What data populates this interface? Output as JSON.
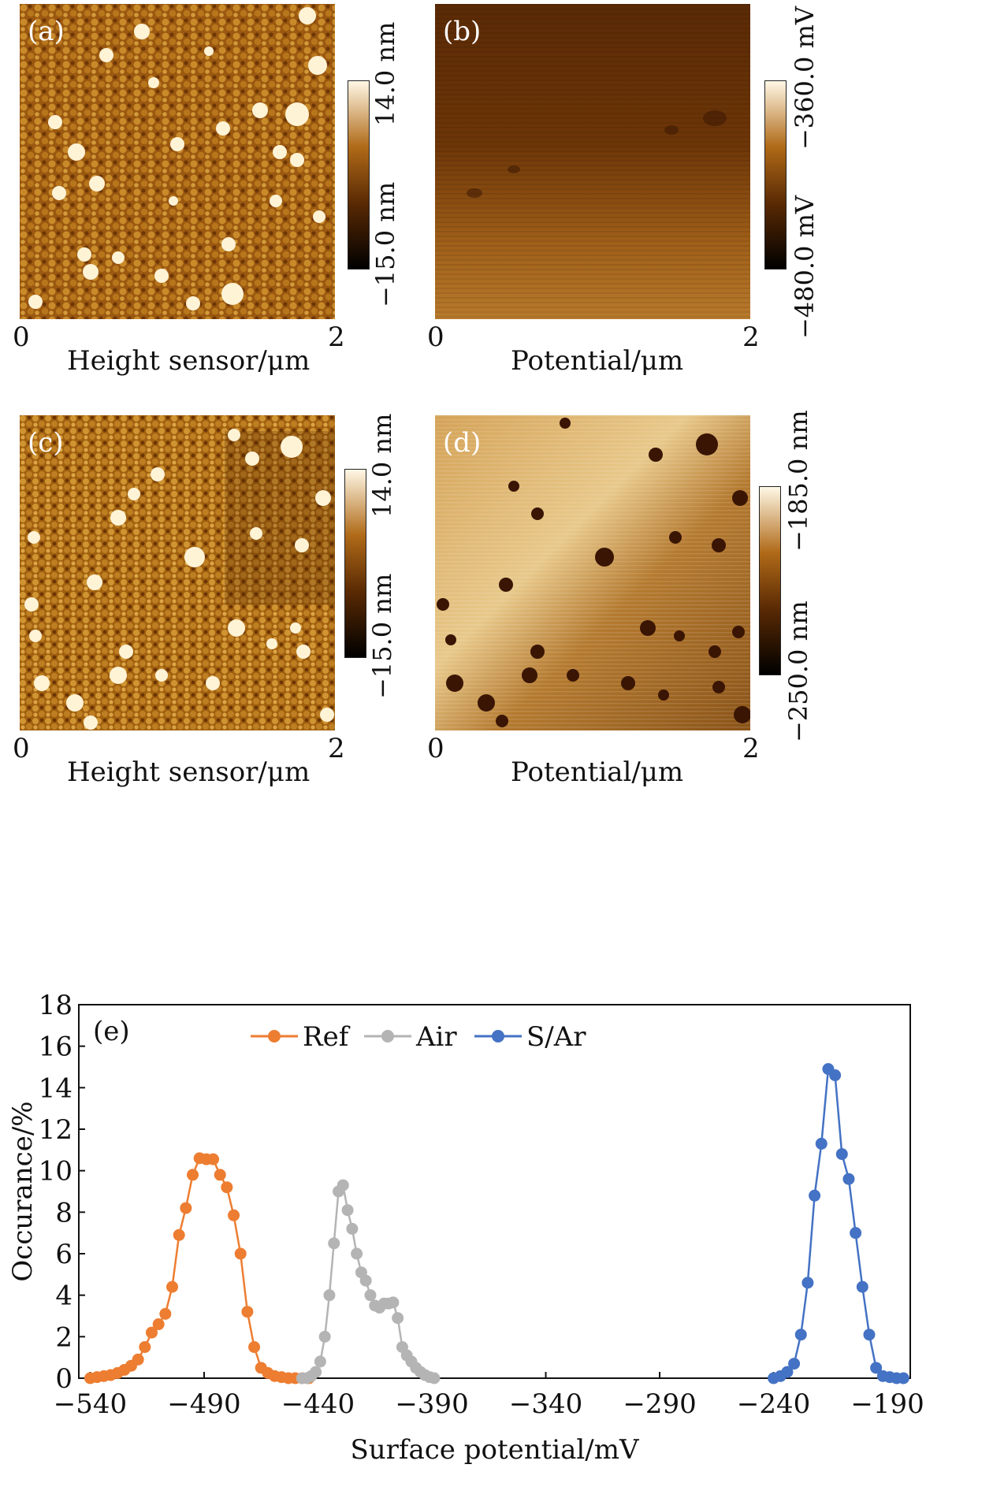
{
  "panels": {
    "a": {
      "label": "(a)",
      "x_min": "0",
      "x_max": "2",
      "xlabel": "Height sensor/μm",
      "cbar_max": "14.0 nm",
      "cbar_min": "−15.0 nm"
    },
    "b": {
      "label": "(b)",
      "x_min": "0",
      "x_max": "2",
      "xlabel": "Potential/μm",
      "cbar_max": "−360.0 mV",
      "cbar_min": "−480.0 mV"
    },
    "c": {
      "label": "(c)",
      "x_min": "0",
      "x_max": "2",
      "xlabel": "Height sensor/μm",
      "cbar_max": "14.0 nm",
      "cbar_min": "−15.0 nm"
    },
    "d": {
      "label": "(d)",
      "x_min": "0",
      "x_max": "2",
      "xlabel": "Potential/μm",
      "cbar_max": "−185.0 nm",
      "cbar_min": "−250.0 nm"
    }
  },
  "colors": {
    "ref": "#ed7d31",
    "air": "#b4b4b4",
    "sar": "#4472c4",
    "afm_dark": "#1a0800",
    "afm_mid": "#8a4a0a",
    "afm_light": "#fff6dc"
  },
  "chart_data": {
    "type": "line",
    "panel_label": "(e)",
    "xlabel": "Surface potential/mV",
    "ylabel": "Occurance/%",
    "xlim": [
      -545,
      -180
    ],
    "ylim": [
      0,
      18
    ],
    "xticks": [
      -540,
      -490,
      -440,
      -390,
      -340,
      -290,
      -240,
      -190
    ],
    "yticks": [
      0,
      2,
      4,
      6,
      8,
      10,
      12,
      14,
      16,
      18
    ],
    "legend_position": "top-center",
    "series": [
      {
        "name": "Ref",
        "color": "#ed7d31",
        "x": [
          -540,
          -537,
          -534,
          -531,
          -528,
          -525,
          -522,
          -519,
          -516,
          -513,
          -510,
          -507,
          -504,
          -501,
          -498,
          -495,
          -492,
          -489,
          -486,
          -483,
          -480,
          -477,
          -474,
          -471,
          -468,
          -465,
          -462,
          -459,
          -456,
          -453,
          -450,
          -447,
          -444
        ],
        "y": [
          0.0,
          0.05,
          0.1,
          0.15,
          0.25,
          0.4,
          0.6,
          0.9,
          1.5,
          2.2,
          2.6,
          3.1,
          4.4,
          6.9,
          8.2,
          9.8,
          10.6,
          10.55,
          10.55,
          9.8,
          9.2,
          7.85,
          6.0,
          3.2,
          1.5,
          0.5,
          0.25,
          0.1,
          0.05,
          0.0,
          0.0,
          0.0,
          0.0
        ]
      },
      {
        "name": "Air",
        "color": "#b4b4b4",
        "x": [
          -447,
          -445,
          -443,
          -441,
          -439,
          -437,
          -435,
          -433,
          -431,
          -429,
          -427,
          -425,
          -423,
          -421,
          -419,
          -417,
          -415,
          -413,
          -411,
          -409,
          -407,
          -405,
          -403,
          -401,
          -399,
          -397,
          -395,
          -393,
          -391,
          -389
        ],
        "y": [
          0.0,
          0.0,
          0.1,
          0.3,
          0.8,
          2.0,
          4.0,
          6.5,
          9.0,
          9.3,
          8.1,
          7.2,
          6.0,
          5.1,
          4.7,
          4.0,
          3.5,
          3.4,
          3.6,
          3.6,
          3.65,
          2.9,
          1.5,
          1.1,
          0.8,
          0.5,
          0.3,
          0.15,
          0.05,
          0.0
        ]
      },
      {
        "name": "S/Ar",
        "color": "#4472c4",
        "x": [
          -240,
          -237,
          -234,
          -231,
          -228,
          -225,
          -222,
          -219,
          -216,
          -213,
          -210,
          -207,
          -204,
          -201,
          -198,
          -195,
          -192,
          -189,
          -186,
          -183
        ],
        "y": [
          0.0,
          0.1,
          0.3,
          0.7,
          2.1,
          4.6,
          8.8,
          11.3,
          14.9,
          14.6,
          10.8,
          9.6,
          7.0,
          4.4,
          2.1,
          0.5,
          0.1,
          0.05,
          0.0,
          0.0
        ]
      }
    ]
  }
}
